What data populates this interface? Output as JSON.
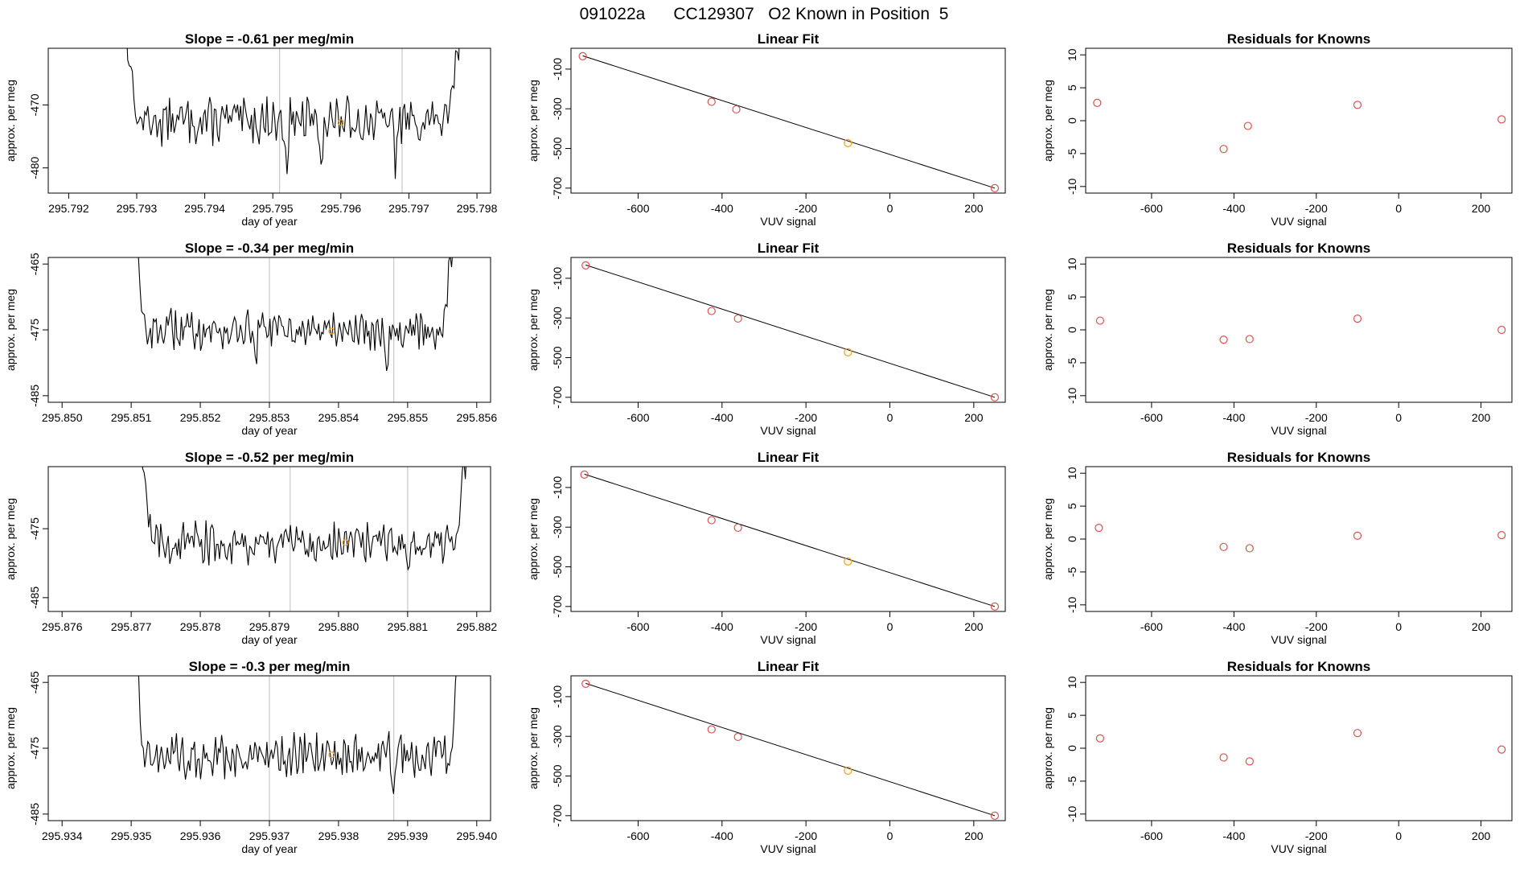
{
  "figure": {
    "title": "091022a      CC129307   O2 Known in Position  5"
  },
  "colors": {
    "trace": "#000000",
    "marker": "#f0a020",
    "point": "#d9534f",
    "guide": "#c8c8c8",
    "fitline": "#000000"
  },
  "chart_data": [
    {
      "id": "ts1",
      "type": "line",
      "title": "Slope =  -0.61  per meg/min",
      "xlabel": "day of year",
      "ylabel": "approx. per meg",
      "xlim": [
        295.7917,
        295.7982
      ],
      "ylim": [
        -484,
        -461
      ],
      "xticks": [
        "295.792",
        "295.793",
        "295.794",
        "295.795",
        "295.796",
        "295.797",
        "295.798"
      ],
      "xtick_values": [
        295.792,
        295.793,
        295.794,
        295.795,
        295.796,
        295.797,
        295.798
      ],
      "yticks": [
        "-470",
        "-480"
      ],
      "ytick_values": [
        -470,
        -480
      ],
      "x_start": 295.7928,
      "x_end": 295.7978,
      "baseline": -472.5,
      "amplitude": 2.2,
      "dips": [
        295.7952,
        295.7957,
        295.7968
      ],
      "guides": [
        295.7951,
        295.7969
      ],
      "marker": {
        "x": 295.796,
        "y": -472.8
      }
    },
    {
      "id": "ts2",
      "type": "line",
      "title": "Slope =  -0.34  per meg/min",
      "xlabel": "day of year",
      "ylabel": "approx. per meg",
      "xlim": [
        295.8498,
        295.8562
      ],
      "ylim": [
        -486,
        -464
      ],
      "xticks": [
        "295.850",
        "295.851",
        "295.852",
        "295.853",
        "295.854",
        "295.855",
        "295.856"
      ],
      "xtick_values": [
        295.85,
        295.851,
        295.852,
        295.853,
        295.854,
        295.855,
        295.856
      ],
      "yticks": [
        "-465",
        "-475",
        "-485"
      ],
      "ytick_values": [
        -465,
        -475,
        -485
      ],
      "x_start": 295.851,
      "x_end": 295.8557,
      "baseline": -475.0,
      "amplitude": 1.8,
      "dips": [
        295.8528,
        295.8547
      ],
      "guides": [
        295.853,
        295.8548
      ],
      "marker": {
        "x": 295.8539,
        "y": -475.2
      }
    },
    {
      "id": "ts3",
      "type": "line",
      "title": "Slope =  -0.52  per meg/min",
      "xlabel": "day of year",
      "ylabel": "approx. per meg",
      "xlim": [
        295.8758,
        295.8822
      ],
      "ylim": [
        -487,
        -466
      ],
      "xticks": [
        "295.876",
        "295.877",
        "295.878",
        "295.879",
        "295.880",
        "295.881",
        "295.882"
      ],
      "xtick_values": [
        295.876,
        295.877,
        295.878,
        295.879,
        295.88,
        295.881,
        295.882
      ],
      "yticks": [
        "-475",
        "-485"
      ],
      "ytick_values": [
        -475,
        -485
      ],
      "x_start": 295.8771,
      "x_end": 295.8819,
      "baseline": -477.0,
      "amplitude": 1.8,
      "dips": [
        295.881
      ],
      "guides": [
        295.8793,
        295.881
      ],
      "marker": {
        "x": 295.8801,
        "y": -477.0
      }
    },
    {
      "id": "ts4",
      "type": "line",
      "title": "Slope =  -0.3  per meg/min",
      "xlabel": "day of year",
      "ylabel": "approx. per meg",
      "xlim": [
        295.9338,
        295.9402
      ],
      "ylim": [
        -486,
        -464
      ],
      "xticks": [
        "295.934",
        "295.935",
        "295.936",
        "295.937",
        "295.938",
        "295.939",
        "295.940"
      ],
      "xtick_values": [
        295.934,
        295.935,
        295.936,
        295.937,
        295.938,
        295.939,
        295.94
      ],
      "yticks": [
        "-465",
        "-475",
        "-485"
      ],
      "ytick_values": [
        -465,
        -475,
        -485
      ],
      "x_start": 295.935,
      "x_end": 295.9398,
      "baseline": -476.0,
      "amplitude": 2.0,
      "dips": [
        295.936,
        295.9388
      ],
      "guides": [
        295.937,
        295.9388
      ],
      "marker": {
        "x": 295.9379,
        "y": -476.0
      }
    },
    {
      "id": "fit1",
      "type": "scatter",
      "title": "Linear Fit",
      "xlabel": "VUV signal",
      "ylabel": "approx. per meg",
      "xlim": [
        -760,
        275
      ],
      "ylim": [
        -725,
        5
      ],
      "xticks": [
        "-600",
        "-400",
        "-200",
        "0",
        "200"
      ],
      "xtick_values": [
        -600,
        -400,
        -200,
        0,
        200
      ],
      "yticks": [
        "-100",
        "-300",
        "-500",
        "-700"
      ],
      "ytick_values": [
        -100,
        -300,
        -500,
        -700
      ],
      "points": [
        [
          -732,
          -35
        ],
        [
          -425,
          -265
        ],
        [
          -366,
          -303
        ],
        [
          -100,
          -473
        ],
        [
          250,
          -700
        ]
      ],
      "highlight_index": 3,
      "line": [
        [
          -732,
          -33
        ],
        [
          250,
          -700
        ]
      ]
    },
    {
      "id": "fit2",
      "type": "scatter",
      "title": "Linear Fit",
      "xlabel": "VUV signal",
      "ylabel": "approx. per meg",
      "xlim": [
        -760,
        275
      ],
      "ylim": [
        -725,
        5
      ],
      "xticks": [
        "-600",
        "-400",
        "-200",
        "0",
        "200"
      ],
      "xtick_values": [
        -600,
        -400,
        -200,
        0,
        200
      ],
      "yticks": [
        "-100",
        "-300",
        "-500",
        "-700"
      ],
      "ytick_values": [
        -100,
        -300,
        -500,
        -700
      ],
      "points": [
        [
          -725,
          -35
        ],
        [
          -425,
          -265
        ],
        [
          -362,
          -303
        ],
        [
          -100,
          -473
        ],
        [
          250,
          -700
        ]
      ],
      "highlight_index": 3,
      "line": [
        [
          -725,
          -33
        ],
        [
          250,
          -700
        ]
      ]
    },
    {
      "id": "fit3",
      "type": "scatter",
      "title": "Linear Fit",
      "xlabel": "VUV signal",
      "ylabel": "approx. per meg",
      "xlim": [
        -760,
        275
      ],
      "ylim": [
        -725,
        5
      ],
      "xticks": [
        "-600",
        "-400",
        "-200",
        "0",
        "200"
      ],
      "xtick_values": [
        -600,
        -400,
        -200,
        0,
        200
      ],
      "yticks": [
        "-100",
        "-300",
        "-500",
        "-700"
      ],
      "ytick_values": [
        -100,
        -300,
        -500,
        -700
      ],
      "points": [
        [
          -728,
          -35
        ],
        [
          -425,
          -265
        ],
        [
          -362,
          -303
        ],
        [
          -100,
          -473
        ],
        [
          250,
          -700
        ]
      ],
      "highlight_index": 3,
      "line": [
        [
          -728,
          -33
        ],
        [
          250,
          -700
        ]
      ]
    },
    {
      "id": "fit4",
      "type": "scatter",
      "title": "Linear Fit",
      "xlabel": "VUV signal",
      "ylabel": "approx. per meg",
      "xlim": [
        -760,
        275
      ],
      "ylim": [
        -725,
        5
      ],
      "xticks": [
        "-600",
        "-400",
        "-200",
        "0",
        "200"
      ],
      "xtick_values": [
        -600,
        -400,
        -200,
        0,
        200
      ],
      "yticks": [
        "-100",
        "-300",
        "-500",
        "-700"
      ],
      "ytick_values": [
        -100,
        -300,
        -500,
        -700
      ],
      "points": [
        [
          -725,
          -35
        ],
        [
          -425,
          -265
        ],
        [
          -362,
          -303
        ],
        [
          -100,
          -473
        ],
        [
          250,
          -700
        ]
      ],
      "highlight_index": 3,
      "line": [
        [
          -725,
          -33
        ],
        [
          250,
          -700
        ]
      ]
    },
    {
      "id": "res1",
      "type": "scatter",
      "title": "Residuals for Knowns",
      "xlabel": "VUV signal",
      "ylabel": "approx. per meg",
      "xlim": [
        -760,
        275
      ],
      "ylim": [
        -11,
        11
      ],
      "xticks": [
        "-600",
        "-400",
        "-200",
        "0",
        "200"
      ],
      "xtick_values": [
        -600,
        -400,
        -200,
        0,
        200
      ],
      "yticks": [
        "-10",
        "-5",
        "0",
        "5",
        "10"
      ],
      "ytick_values": [
        -10,
        -5,
        0,
        5,
        10
      ],
      "points": [
        [
          -732,
          2.7
        ],
        [
          -425,
          -4.3
        ],
        [
          -366,
          -0.8
        ],
        [
          -100,
          2.4
        ],
        [
          250,
          0.2
        ]
      ]
    },
    {
      "id": "res2",
      "type": "scatter",
      "title": "Residuals for Knowns",
      "xlabel": "VUV signal",
      "ylabel": "approx. per meg",
      "xlim": [
        -760,
        275
      ],
      "ylim": [
        -11,
        11
      ],
      "xticks": [
        "-600",
        "-400",
        "-200",
        "0",
        "200"
      ],
      "xtick_values": [
        -600,
        -400,
        -200,
        0,
        200
      ],
      "yticks": [
        "-10",
        "-5",
        "0",
        "5",
        "10"
      ],
      "ytick_values": [
        -10,
        -5,
        0,
        5,
        10
      ],
      "points": [
        [
          -725,
          1.4
        ],
        [
          -425,
          -1.5
        ],
        [
          -362,
          -1.4
        ],
        [
          -100,
          1.7
        ],
        [
          250,
          0.0
        ]
      ]
    },
    {
      "id": "res3",
      "type": "scatter",
      "title": "Residuals for Knowns",
      "xlabel": "VUV signal",
      "ylabel": "approx. per meg",
      "xlim": [
        -760,
        275
      ],
      "ylim": [
        -11,
        11
      ],
      "xticks": [
        "-600",
        "-400",
        "-200",
        "0",
        "200"
      ],
      "xtick_values": [
        -600,
        -400,
        -200,
        0,
        200
      ],
      "yticks": [
        "-10",
        "-5",
        "0",
        "5",
        "10"
      ],
      "ytick_values": [
        -10,
        -5,
        0,
        5,
        10
      ],
      "points": [
        [
          -728,
          1.7
        ],
        [
          -425,
          -1.2
        ],
        [
          -362,
          -1.4
        ],
        [
          -100,
          0.5
        ],
        [
          250,
          0.6
        ]
      ]
    },
    {
      "id": "res4",
      "type": "scatter",
      "title": "Residuals for Knowns",
      "xlabel": "VUV signal",
      "ylabel": "approx. per meg",
      "xlim": [
        -760,
        275
      ],
      "ylim": [
        -11,
        11
      ],
      "xticks": [
        "-600",
        "-400",
        "-200",
        "0",
        "200"
      ],
      "xtick_values": [
        -600,
        -400,
        -200,
        0,
        200
      ],
      "yticks": [
        "-10",
        "-5",
        "0",
        "5",
        "10"
      ],
      "ytick_values": [
        -10,
        -5,
        0,
        5,
        10
      ],
      "points": [
        [
          -725,
          1.5
        ],
        [
          -425,
          -1.4
        ],
        [
          -362,
          -2.0
        ],
        [
          -100,
          2.3
        ],
        [
          250,
          -0.2
        ]
      ]
    }
  ]
}
